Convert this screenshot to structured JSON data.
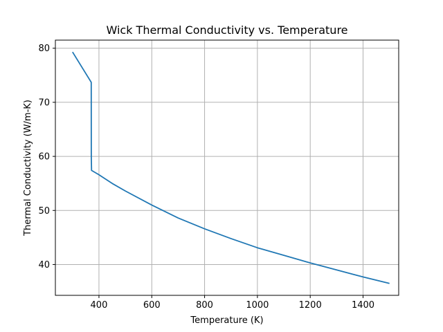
{
  "chart_data": {
    "type": "line",
    "title": "Wick Thermal Conductivity vs. Temperature",
    "xlabel": "Temperature (K)",
    "ylabel": "Thermal Conductivity (W/m-K)",
    "xlim": [
      235,
      1535
    ],
    "ylim": [
      34.3,
      81.5
    ],
    "xticks": [
      400,
      600,
      800,
      1000,
      1200,
      1400
    ],
    "xtick_labels": [
      "400",
      "600",
      "800",
      "1000",
      "1200",
      "1400"
    ],
    "yticks": [
      40,
      50,
      60,
      70,
      80
    ],
    "ytick_labels": [
      "40",
      "50",
      "60",
      "70",
      "80"
    ],
    "grid": true,
    "line_color": "#1f77b4",
    "series": [
      {
        "x": [
          300,
          370.8,
          371.0,
          372.0,
          400,
          450,
          500,
          600,
          700,
          800,
          900,
          1000,
          1100,
          1200,
          1300,
          1400,
          1500
        ],
        "y": [
          79.3,
          73.7,
          60.0,
          57.4,
          56.6,
          55.0,
          53.6,
          51.0,
          48.6,
          46.6,
          44.8,
          43.1,
          41.7,
          40.3,
          39.0,
          37.7,
          36.5
        ]
      }
    ]
  }
}
